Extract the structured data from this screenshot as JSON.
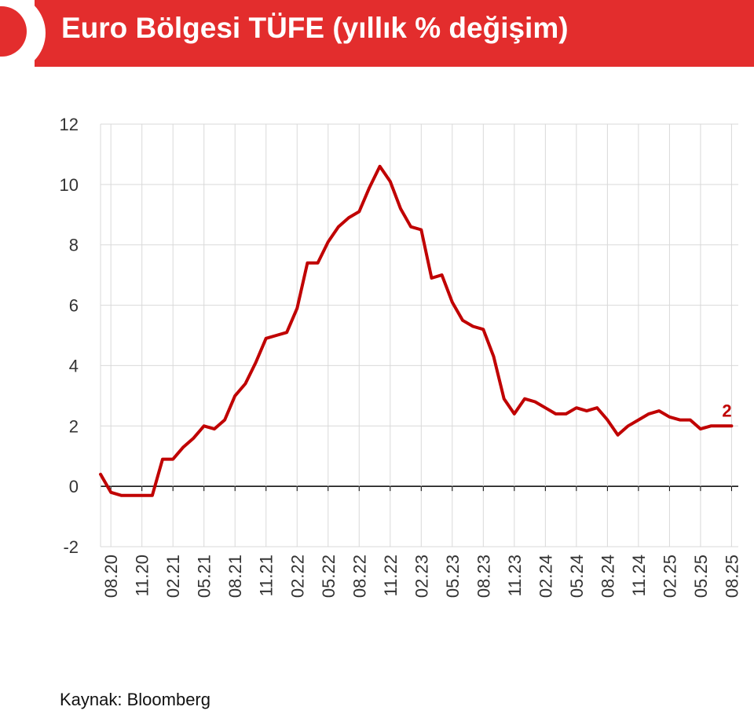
{
  "title": "Euro Bölgesi TÜFE (yıllık % değişim)",
  "source": "Kaynak: Bloomberg",
  "colors": {
    "accent": "#e32d2d",
    "line": "#c00000",
    "grid": "#d9d9d9",
    "axis": "#000000"
  },
  "chart_data": {
    "type": "line",
    "title": "Euro Bölgesi TÜFE (yıllık % değişim)",
    "xlabel": "",
    "ylabel": "",
    "ylim": [
      -2,
      12
    ],
    "yticks": [
      "12",
      "10",
      "8",
      "6",
      "4",
      "2",
      "0",
      "-2"
    ],
    "grid": true,
    "legend": "none",
    "x_tick_labels": [
      "08.20",
      "11.20",
      "02.21",
      "05.21",
      "08.21",
      "11.21",
      "02.22",
      "05.22",
      "08.22",
      "11.22",
      "02.23",
      "05.23",
      "08.23",
      "11.23",
      "02.24",
      "05.24",
      "08.24",
      "11.24",
      "02.25",
      "05.25",
      "08.25"
    ],
    "end_label": "2",
    "series": [
      {
        "x": [
          "07.20",
          "08.20",
          "09.20",
          "10.20",
          "11.20",
          "12.20",
          "01.21",
          "02.21",
          "03.21",
          "04.21",
          "05.21",
          "06.21",
          "07.21",
          "08.21",
          "09.21",
          "10.21",
          "11.21",
          "12.21",
          "01.22",
          "02.22",
          "03.22",
          "04.22",
          "05.22",
          "06.22",
          "07.22",
          "08.22",
          "09.22",
          "10.22",
          "11.22",
          "12.22",
          "01.23",
          "02.23",
          "03.23",
          "04.23",
          "05.23",
          "06.23",
          "07.23",
          "08.23",
          "09.23",
          "10.23",
          "11.23",
          "12.23",
          "01.24",
          "02.24",
          "03.24",
          "04.24",
          "05.24",
          "06.24",
          "07.24",
          "08.24",
          "09.24",
          "10.24",
          "11.24",
          "12.24",
          "01.25",
          "02.25",
          "03.25",
          "04.25",
          "05.25",
          "06.25",
          "07.25",
          "08.25"
        ],
        "values": [
          0.4,
          -0.2,
          -0.3,
          -0.3,
          -0.3,
          -0.3,
          0.9,
          0.9,
          1.3,
          1.6,
          2.0,
          1.9,
          2.2,
          3.0,
          3.4,
          4.1,
          4.9,
          5.0,
          5.1,
          5.9,
          7.4,
          7.4,
          8.1,
          8.6,
          8.9,
          9.1,
          9.9,
          10.6,
          10.1,
          9.2,
          8.6,
          8.5,
          6.9,
          7.0,
          6.1,
          5.5,
          5.3,
          5.2,
          4.3,
          2.9,
          2.4,
          2.9,
          2.8,
          2.6,
          2.4,
          2.4,
          2.6,
          2.5,
          2.6,
          2.2,
          1.7,
          2.0,
          2.2,
          2.4,
          2.5,
          2.3,
          2.2,
          2.2,
          1.9,
          2.0,
          2.0,
          2.0
        ]
      }
    ]
  }
}
